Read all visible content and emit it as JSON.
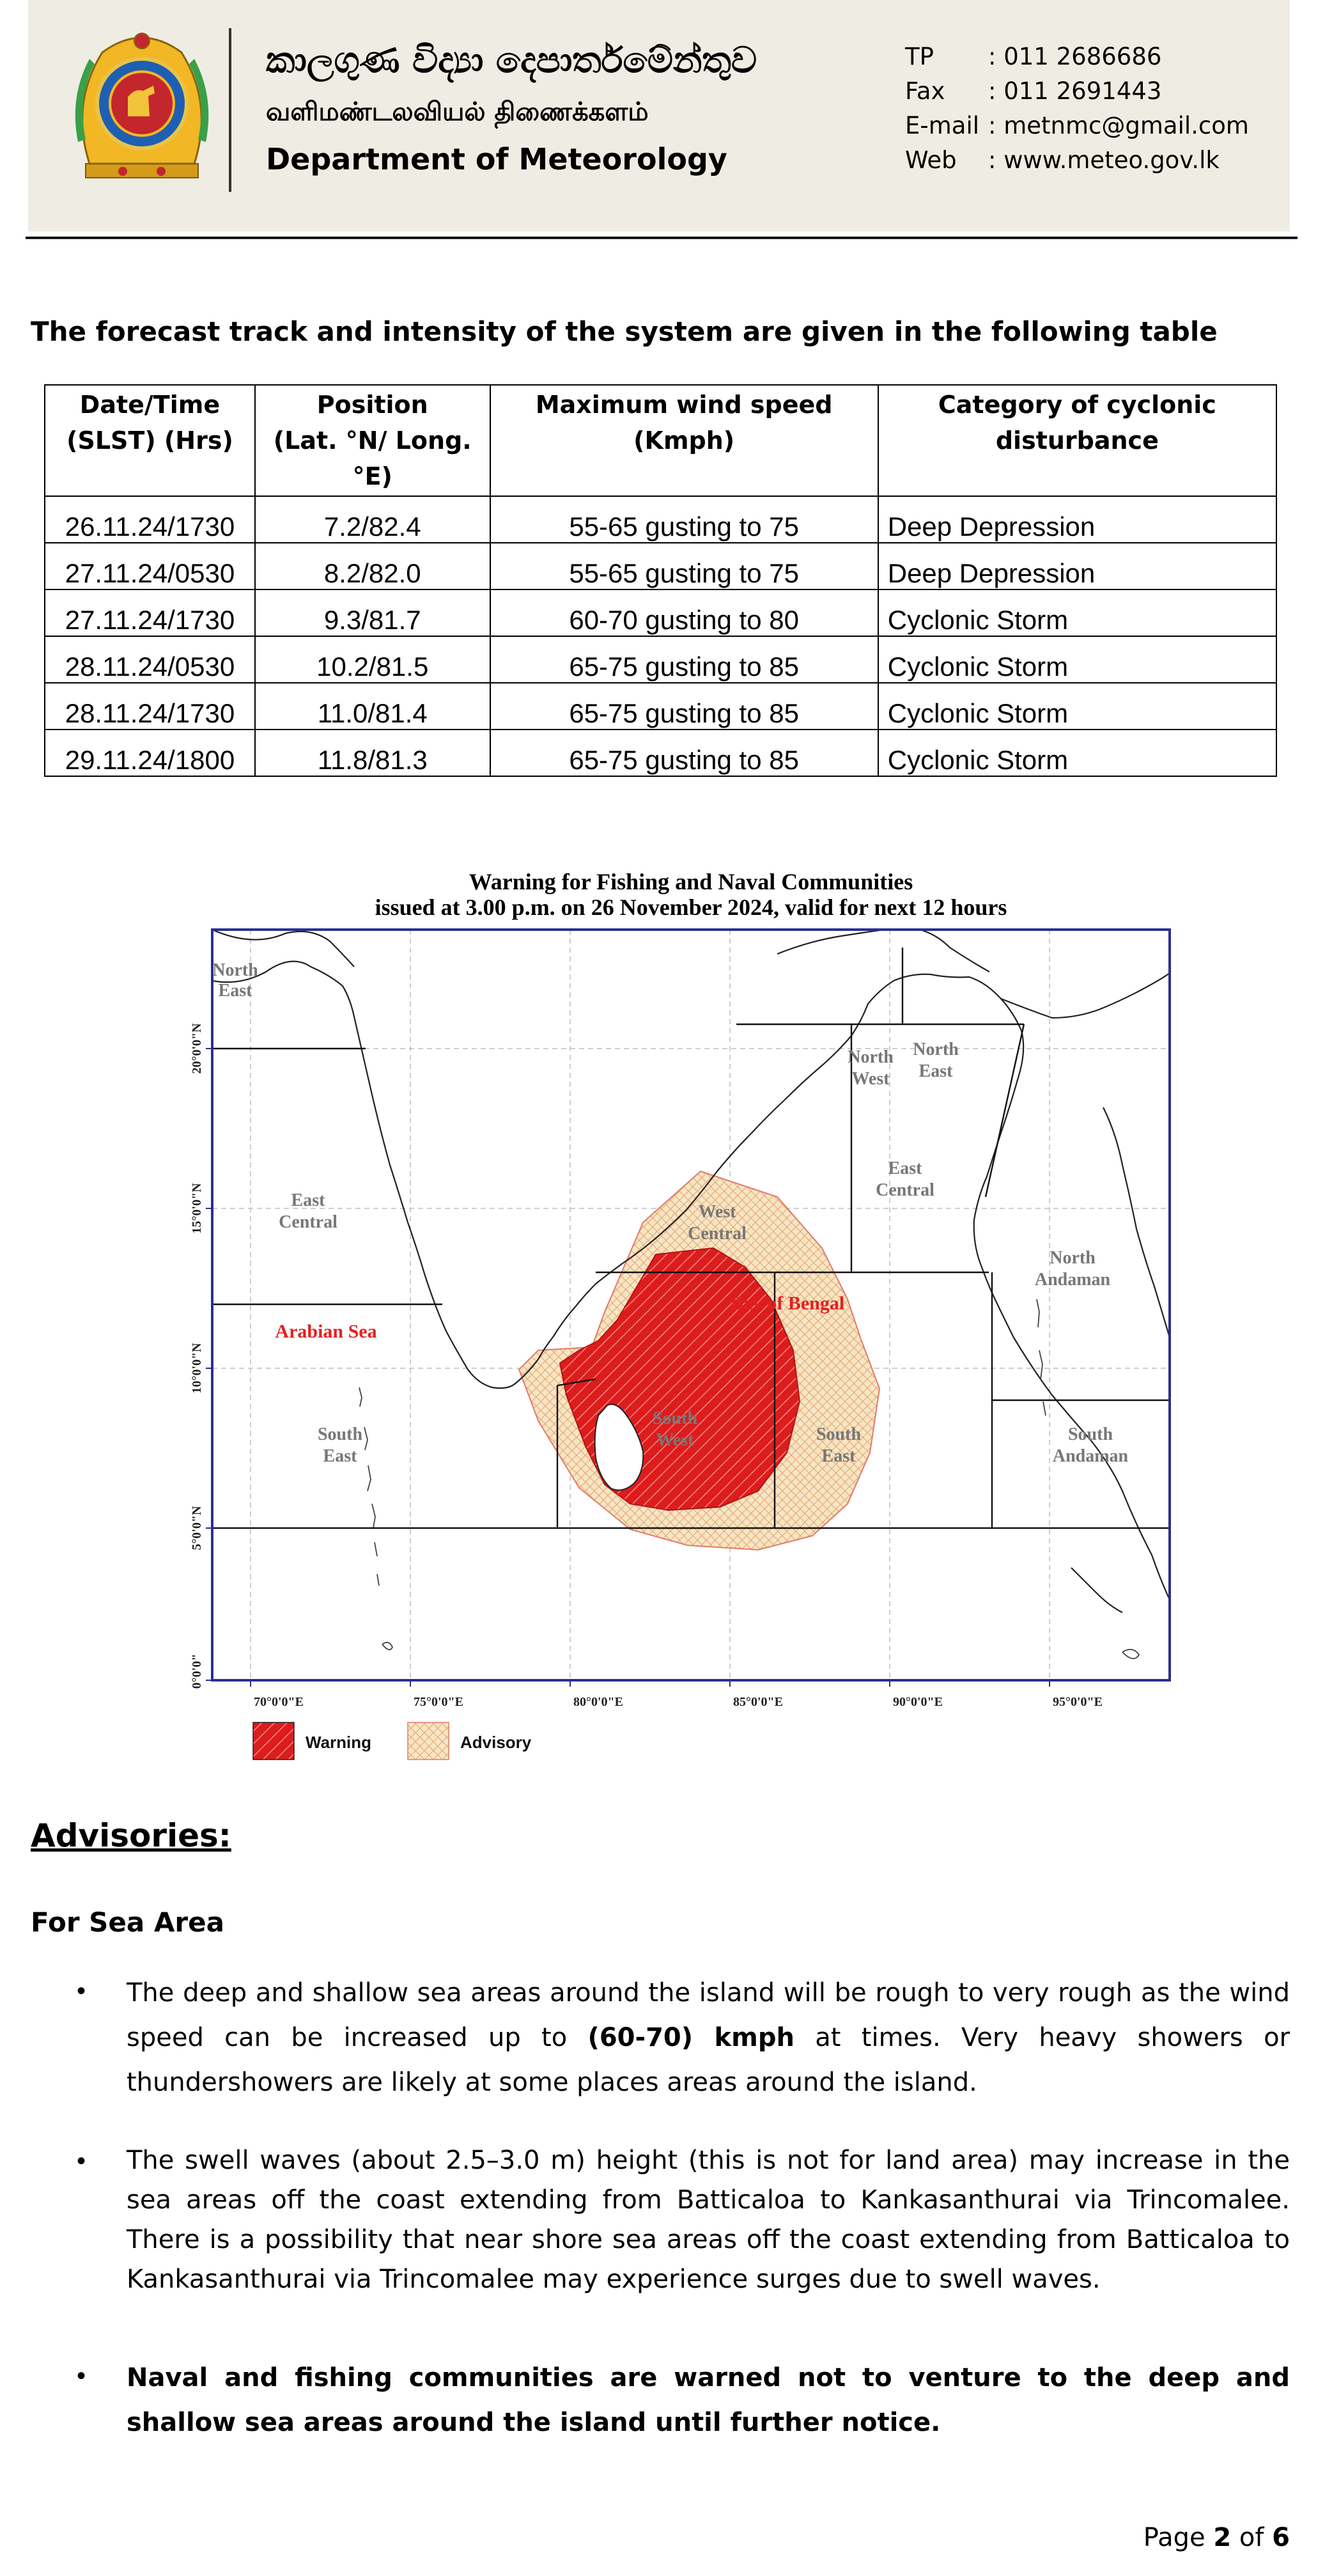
{
  "header": {
    "title_si": "කාලගුණ විද්‍යා දෙපාර්තමේන්තුව",
    "title_ta": "வளிமண்டலவியல் திணைக்களம்",
    "title_en": "Department of Meteorology",
    "contacts": [
      {
        "label": "TP",
        "value": ": 011 2686686"
      },
      {
        "label": "Fax",
        "value": ": 011 2691443"
      },
      {
        "label": "E-mail",
        "value": ": metnmc@gmail.com"
      },
      {
        "label": "Web",
        "value": ": www.meteo.gov.lk"
      }
    ]
  },
  "intro": "The forecast track and intensity of the system are given in the following table",
  "table": {
    "headers": [
      [
        "Date/Time",
        "(SLST) (Hrs)"
      ],
      [
        "Position",
        "(Lat. °N/ Long.",
        "°E)"
      ],
      [
        "Maximum wind speed",
        "(Kmph)"
      ],
      [
        "Category of cyclonic",
        "disturbance"
      ]
    ],
    "rows": [
      [
        "26.11.24/1730",
        "7.2/82.4",
        "55-65 gusting to 75",
        "Deep Depression"
      ],
      [
        "27.11.24/0530",
        "8.2/82.0",
        "55-65 gusting to 75",
        "Deep Depression"
      ],
      [
        "27.11.24/1730",
        "9.3/81.7",
        "60-70 gusting to 80",
        "Cyclonic Storm"
      ],
      [
        "28.11.24/0530",
        "10.2/81.5",
        "65-75 gusting to 85",
        "Cyclonic Storm"
      ],
      [
        "28.11.24/1730",
        "11.0/81.4",
        "65-75 gusting to 85",
        "Cyclonic Storm"
      ],
      [
        "29.11.24/1800",
        "11.8/81.3",
        "65-75 gusting to 85",
        "Cyclonic Storm"
      ]
    ]
  },
  "map": {
    "title_line1": "Warning for Fishing and Naval Communities",
    "title_line2": "issued at 3.00 p.m. on 26  November 2024, valid for next 12 hours",
    "lat_labels": [
      "20°0'0\"N",
      "15°0'0\"N",
      "10°0'0\"N",
      "5°0'0\"N",
      "0°0'0\""
    ],
    "lon_labels": [
      "70°0'0\"E",
      "75°0'0\"E",
      "80°0'0\"E",
      "85°0'0\"E",
      "90°0'0\"E",
      "95°0'0\"E"
    ],
    "regions": [
      {
        "lines": [
          "North",
          "East"
        ]
      },
      {
        "lines": [
          "East",
          "Central"
        ]
      },
      {
        "lines": [
          "South",
          "East"
        ]
      },
      {
        "lines": [
          "North",
          "West"
        ]
      },
      {
        "lines": [
          "North",
          "East"
        ]
      },
      {
        "lines": [
          "West",
          "Central"
        ]
      },
      {
        "lines": [
          "East",
          "Central"
        ]
      },
      {
        "lines": [
          "South",
          "West"
        ]
      },
      {
        "lines": [
          "South",
          "East"
        ]
      },
      {
        "lines": [
          "North",
          "Andaman"
        ]
      },
      {
        "lines": [
          "South",
          "Andaman"
        ]
      }
    ],
    "arabian_sea": "Arabian Sea",
    "bay_of_bengal": "Bay of Bengal",
    "legend_warning": "Warning",
    "legend_advisory": "Advisory",
    "warning_color": "#dd1c1c",
    "advisory_color": "#f6e6c4"
  },
  "advisories": {
    "heading": "Advisories:",
    "sea_heading": "For Sea Area",
    "p1_a": "The deep and shallow sea areas around the island will be rough to very rough as the wind speed can be increased up to ",
    "p1_b": "(60-70) kmph",
    "p1_c": " at times. Very heavy showers or thundershowers are likely at some places areas around the island.",
    "p2": "The swell waves (about 2.5–3.0 m) height (this is not for land area) may increase in the sea areas off the coast extending from Batticaloa to Kankasanthurai via Trincomalee. There is a possibility that near shore sea areas off the coast extending from Batticaloa to Kankasanthurai via Trincomalee may experience surges due to swell waves.",
    "p3": "Naval and fishing communities are warned not to venture to the deep and shallow sea areas around the island until further notice.",
    "bullet": "•"
  },
  "footer": {
    "page_prefix": "Page ",
    "page_current": "2",
    "page_mid": " of ",
    "page_total": "6"
  }
}
